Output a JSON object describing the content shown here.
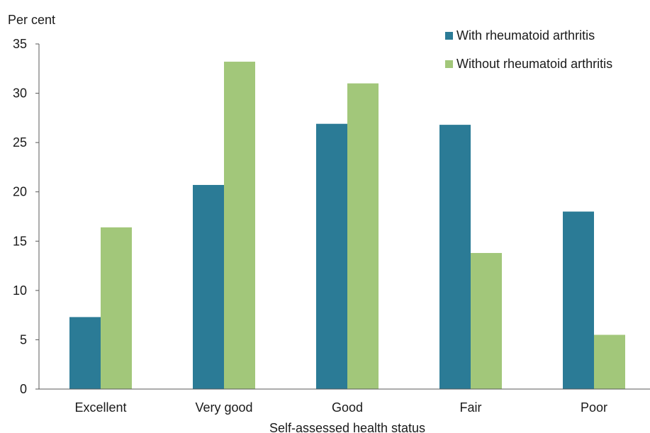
{
  "chart_data": {
    "type": "bar",
    "title": "",
    "ylabel": "Per cent",
    "xlabel": "Self-assessed health status",
    "categories": [
      "Excellent",
      "Very good",
      "Good",
      "Fair",
      "Poor"
    ],
    "series": [
      {
        "name": "With rheumatoid arthritis",
        "color": "#2b7b96",
        "values": [
          7.3,
          20.7,
          26.9,
          26.8,
          18.0
        ]
      },
      {
        "name": "Without rheumatoid arthritis",
        "color": "#a2c77a",
        "values": [
          16.4,
          33.2,
          31.0,
          13.8,
          5.5
        ]
      }
    ],
    "ylim": [
      0,
      35
    ],
    "yticks": [
      0,
      5,
      10,
      15,
      20,
      25,
      30,
      35
    ],
    "grid": false,
    "legend_position": "top-right"
  }
}
